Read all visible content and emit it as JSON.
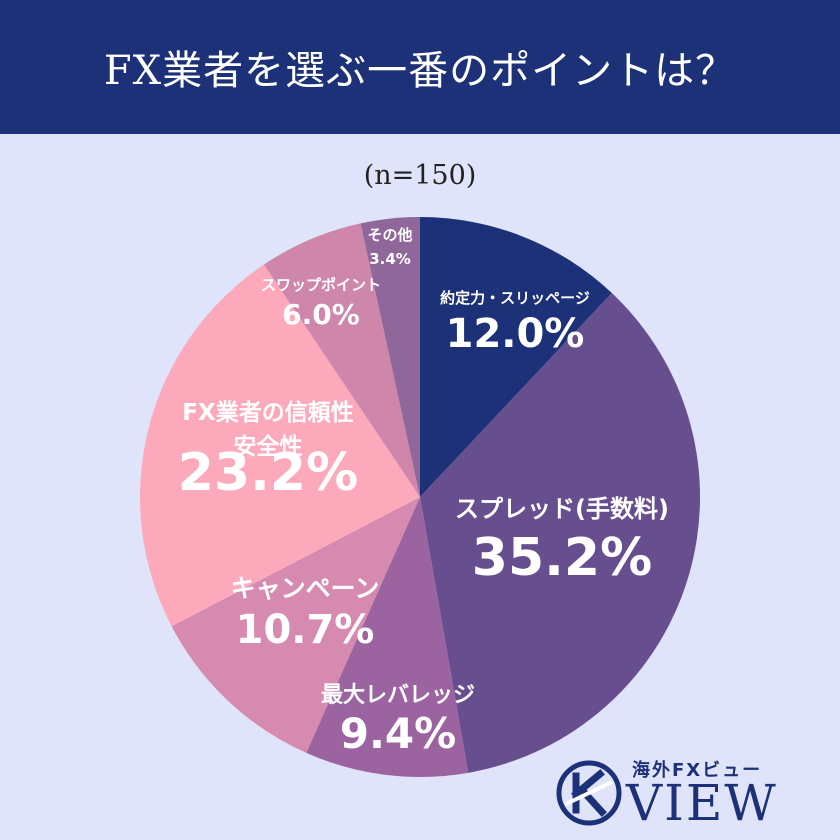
{
  "header": {
    "title": "FX業者を選ぶ一番のポイントは？"
  },
  "sample_note": "(n=150)",
  "chart_data": {
    "type": "pie",
    "start_angle_deg": 0,
    "direction": "clockwise",
    "slices": [
      {
        "label_lines": [
          "約定力・スリッページ"
        ],
        "value": 12.0,
        "value_label": "12.0%",
        "color": "#1c3177"
      },
      {
        "label_lines": [
          "スプレッド(手数料)"
        ],
        "value": 35.2,
        "value_label": "35.2%",
        "color": "#674e8e"
      },
      {
        "label_lines": [
          "最大レバレッジ"
        ],
        "value": 9.4,
        "value_label": "9.4%",
        "color": "#9b64a1"
      },
      {
        "label_lines": [
          "キャンペーン"
        ],
        "value": 10.7,
        "value_label": "10.7%",
        "color": "#d78ab0"
      },
      {
        "label_lines": [
          "FX業者の信頼性",
          "安全性"
        ],
        "value": 23.2,
        "value_label": "23.2%",
        "color": "#fcaabb"
      },
      {
        "label_lines": [
          "スワップポイント"
        ],
        "value": 6.0,
        "value_label": "6.0%",
        "color": "#cf86ab"
      },
      {
        "label_lines": [
          "その他"
        ],
        "value": 3.4,
        "value_label": "3.4%",
        "color": "#90679b"
      }
    ]
  },
  "logo": {
    "small_text": "海外FXビュー",
    "big_text": "VIEW",
    "icon": "k-emblem-icon",
    "color": "#1c3177"
  }
}
